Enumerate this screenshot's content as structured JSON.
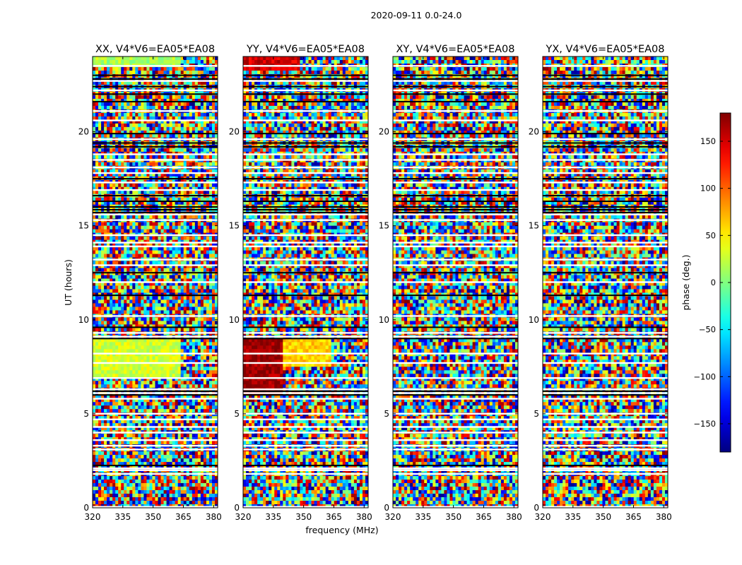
{
  "figure": {
    "suptitle": "2020-09-11 0.0-24.0"
  },
  "chart_data": {
    "type": "heatmap",
    "suptitle": "2020-09-11 0.0-24.0",
    "xlabel": "frequency (MHz)",
    "ylabel": "UT (hours)",
    "xlim": [
      320,
      382
    ],
    "ylim": [
      0,
      24
    ],
    "xticks": [
      "320",
      "335",
      "350",
      "365",
      "380"
    ],
    "xtick_values": [
      320,
      335,
      350,
      365,
      380
    ],
    "yticks": [
      "0",
      "5",
      "10",
      "15",
      "20"
    ],
    "ytick_values": [
      0,
      5,
      10,
      15,
      20
    ],
    "colorbar": {
      "label": "phase (deg.)",
      "range": [
        -180,
        180
      ],
      "ticks": [
        "−150",
        "−100",
        "−50",
        "0",
        "50",
        "100",
        "150"
      ],
      "tick_values": [
        -150,
        -100,
        -50,
        0,
        50,
        100,
        150
      ],
      "colormap": "jet"
    },
    "panels": [
      {
        "title": "XX, V4*V6=EA05*EA08",
        "pol": "XX",
        "coherent_bands": [
          {
            "t": [
              23.4,
              24.0
            ],
            "f": [
              320,
              363
            ],
            "phase": 15
          },
          {
            "t": [
              7.0,
              9.0
            ],
            "f": [
              320,
              363
            ],
            "phase": 30
          }
        ]
      },
      {
        "title": "YY, V4*V6=EA05*EA08",
        "pol": "YY",
        "coherent_bands": [
          {
            "t": [
              23.3,
              24.0
            ],
            "f": [
              320,
              348
            ],
            "phase": 150
          },
          {
            "t": [
              6.0,
              9.0
            ],
            "f": [
              320,
              340
            ],
            "phase": 170
          },
          {
            "t": [
              7.5,
              9.0
            ],
            "f": [
              340,
              364
            ],
            "phase": 60
          }
        ]
      },
      {
        "title": "XY, V4*V6=EA05*EA08",
        "pol": "XY",
        "coherent_bands": []
      },
      {
        "title": "YX, V4*V6=EA05*EA08",
        "pol": "YX",
        "coherent_bands": []
      }
    ],
    "flagged_ut_hours_white": [
      0.05,
      1.8,
      2.0,
      2.1,
      3.1,
      3.3,
      3.6,
      4.0,
      4.3,
      4.7,
      5.0,
      5.8,
      6.1,
      6.3,
      6.9,
      7.7,
      8.2,
      9.1,
      9.3,
      10.2,
      12.0,
      12.9,
      13.2,
      13.9,
      14.1,
      14.5,
      15.3,
      15.6,
      16.9,
      17.3,
      17.8,
      18.1,
      18.5,
      18.8,
      19.6,
      20.6,
      21.1,
      22.2,
      22.7,
      23.5
    ],
    "flagged_ut_hours_black": [
      2.25,
      6.0,
      6.2,
      9.0,
      9.6,
      11.3,
      12.5,
      15.7,
      15.85,
      16.0,
      16.3,
      16.6,
      17.5,
      19.2,
      19.4,
      19.9,
      21.6,
      22.0,
      22.4,
      22.8,
      23.0
    ]
  }
}
